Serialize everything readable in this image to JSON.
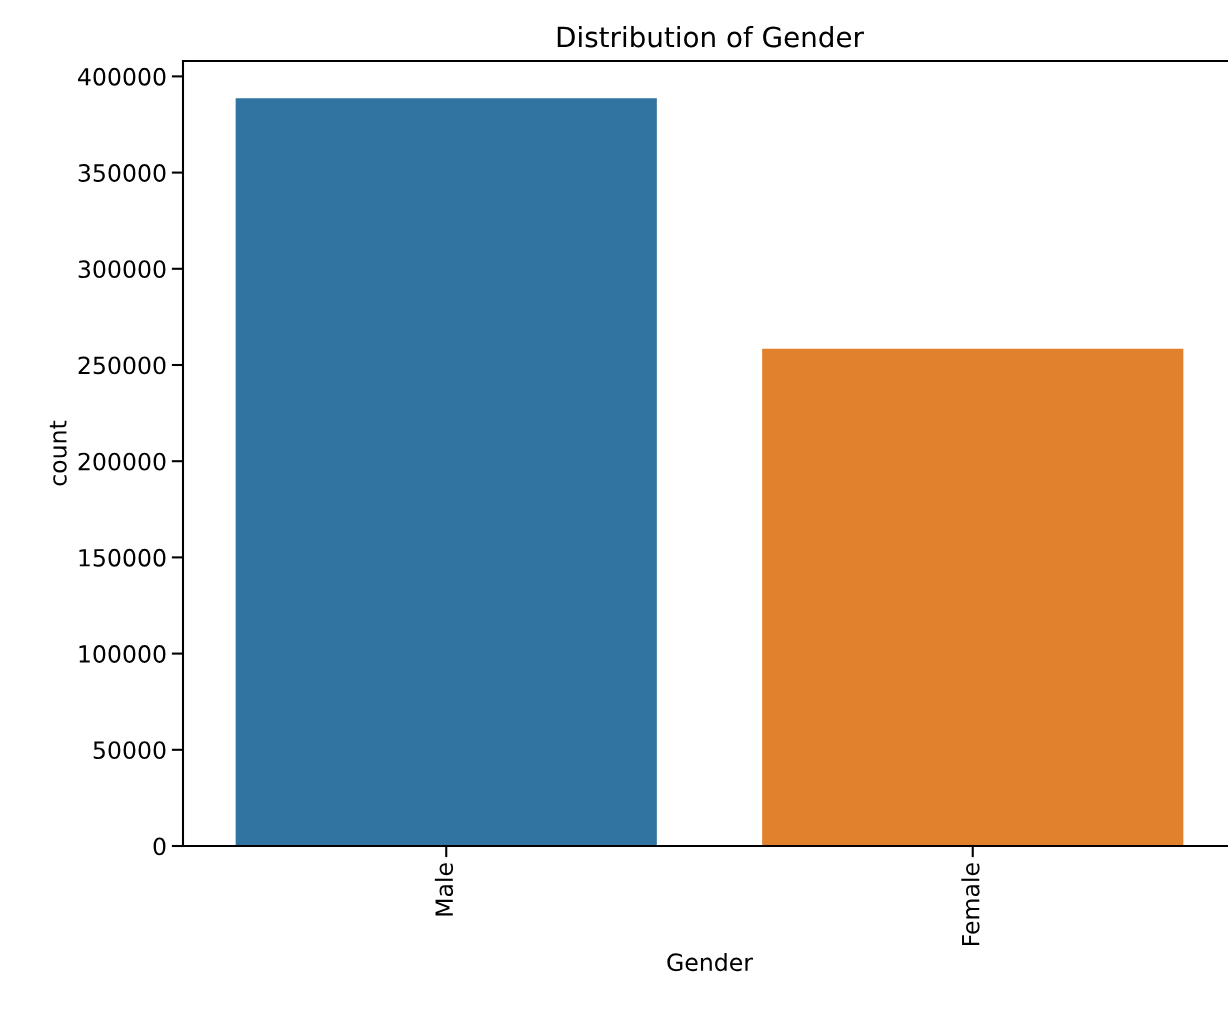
{
  "chart_data": {
    "type": "bar",
    "title": "Distribution of Gender",
    "xlabel": "Gender",
    "ylabel": "count",
    "categories": [
      "Male",
      "Female"
    ],
    "values": [
      388600,
      258400
    ],
    "colors": [
      "#3274a1",
      "#e1812c"
    ],
    "ylim": [
      0,
      408000
    ],
    "yticks": [
      0,
      50000,
      100000,
      150000,
      200000,
      250000,
      300000,
      350000,
      400000
    ],
    "grid": false
  }
}
